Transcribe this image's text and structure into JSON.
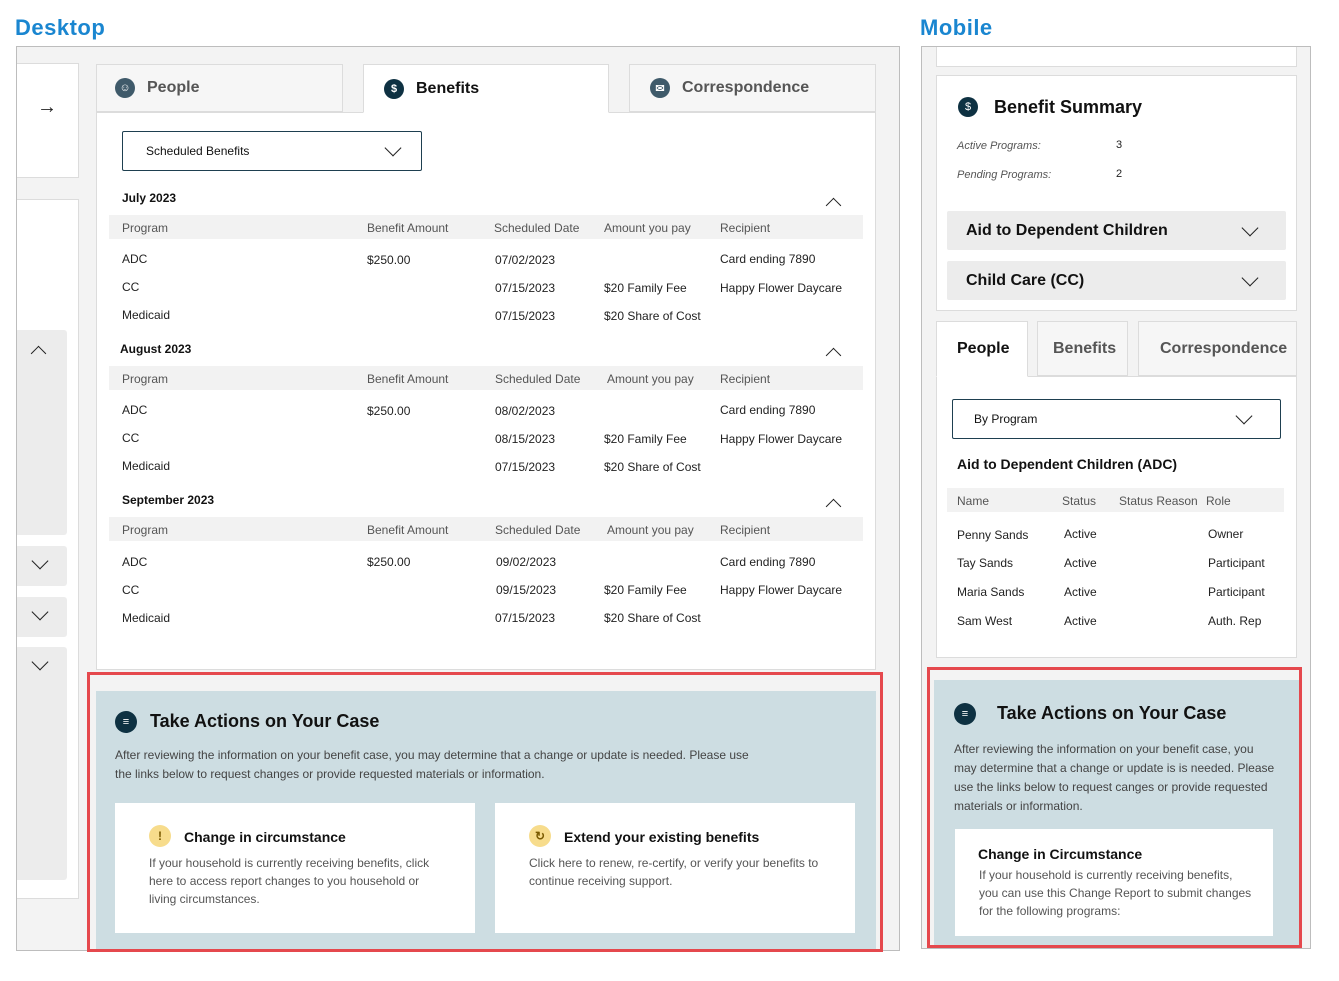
{
  "labels": {
    "desktop": "Desktop",
    "mobile": "Mobile"
  },
  "colors": {
    "accent": "#1a86d0",
    "highlight": "#e5484d",
    "action_bg": "#cddde2",
    "icon_dark": "#0e3142"
  },
  "desktop": {
    "tabs": [
      {
        "label": "People",
        "icon": "people-icon"
      },
      {
        "label": "Benefits",
        "icon": "dollar-icon"
      },
      {
        "label": "Correspondence",
        "icon": "mail-icon"
      }
    ],
    "dropdown": {
      "value": "Scheduled Benefits"
    },
    "columns": [
      "Program",
      "Benefit Amount",
      "Scheduled Date",
      "Amount you pay",
      "Recipient"
    ],
    "months": [
      {
        "title": "July 2023",
        "rows": [
          [
            "ADC",
            "$250.00",
            "07/02/2023",
            "",
            "Card ending 7890"
          ],
          [
            "CC",
            "",
            "07/15/2023",
            "$20 Family Fee",
            "Happy Flower Daycare"
          ],
          [
            "Medicaid",
            "",
            "07/15/2023",
            "$20 Share of Cost",
            ""
          ]
        ]
      },
      {
        "title": "August 2023",
        "rows": [
          [
            "ADC",
            "$250.00",
            "08/02/2023",
            "",
            "Card ending 7890"
          ],
          [
            "CC",
            "",
            "08/15/2023",
            "$20 Family Fee",
            "Happy Flower Daycare"
          ],
          [
            "Medicaid",
            "",
            "07/15/2023",
            "$20 Share of Cost",
            ""
          ]
        ]
      },
      {
        "title": "September 2023",
        "rows": [
          [
            "ADC",
            "$250.00",
            "09/02/2023",
            "",
            "Card ending 7890"
          ],
          [
            "CC",
            "",
            "09/15/2023",
            "$20 Family Fee",
            "Happy Flower Daycare"
          ],
          [
            "Medicaid",
            "",
            "07/15/2023",
            "$20 Share of Cost",
            ""
          ]
        ]
      }
    ],
    "actions": {
      "title": "Take Actions on Your Case",
      "description_1": "After reviewing the information on your benefit case, you may determine that a change or update is needed. Please use",
      "description_2": "the links below to request changes or provide requested materials or information.",
      "cards": [
        {
          "title": "Change in circumstance",
          "lines": [
            "If your household is currently receiving benefits, click",
            "here to access report changes to you household or",
            "living circumstances."
          ]
        },
        {
          "title": "Extend your existing benefits",
          "lines": [
            "Click here to renew, re-certify, or verify your benefits to",
            "continue receiving support."
          ]
        }
      ]
    }
  },
  "mobile": {
    "summary": {
      "title": "Benefit Summary",
      "active_label": "Active Programs:",
      "active_value": "3",
      "pending_label": "Pending Programs:",
      "pending_value": "2"
    },
    "accordions": [
      "Aid to Dependent Children",
      "Child Care (CC)"
    ],
    "tabs": [
      "People",
      "Benefits",
      "Correspondence"
    ],
    "dropdown": {
      "value": "By Program"
    },
    "program_title": "Aid to Dependent Children (ADC)",
    "columns": [
      "Name",
      "Status",
      "Status Reason",
      "Role"
    ],
    "people": [
      [
        "Penny Sands",
        "Active",
        "",
        "Owner"
      ],
      [
        "Tay Sands",
        "Active",
        "",
        "Participant"
      ],
      [
        "Maria Sands",
        "Active",
        "",
        "Participant"
      ],
      [
        "Sam West",
        "Active",
        "",
        "Auth. Rep"
      ]
    ],
    "actions": {
      "title": "Take Actions on Your Case",
      "lines": [
        "After reviewing the information on your benefit case, you",
        "may determine that a change or update is is needed. Please",
        "use the links below to request canges or provide requested",
        "materials or information."
      ],
      "card_title": "Change in Circumstance",
      "card_lines": [
        "If your household is currently receiving benefits,",
        "you can use this Change Report to submit changes",
        "for the following programs:"
      ]
    }
  }
}
